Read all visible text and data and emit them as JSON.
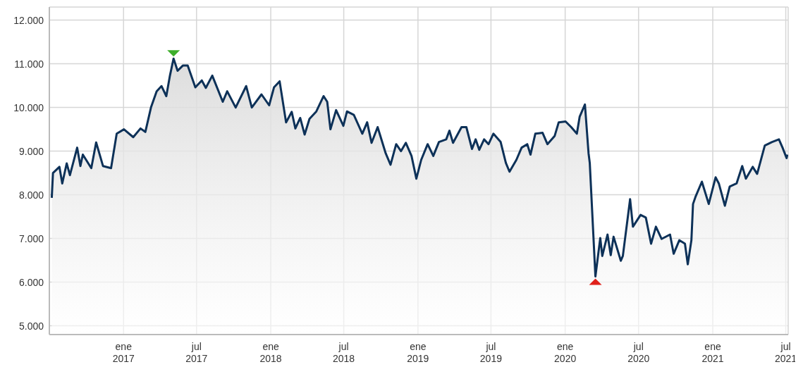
{
  "chart_data": {
    "type": "area",
    "x": [
      "2016-07-07",
      "2016-07-10",
      "2016-07-26",
      "2016-08-02",
      "2016-08-13",
      "2016-08-21",
      "2016-09-08",
      "2016-09-16",
      "2016-09-22",
      "2016-10-13",
      "2016-10-25",
      "2016-11-11",
      "2016-12-01",
      "2016-12-15",
      "2017-01-02",
      "2017-01-25",
      "2017-02-12",
      "2017-02-24",
      "2017-03-10",
      "2017-03-24",
      "2017-04-05",
      "2017-04-17",
      "2017-04-26",
      "2017-05-05",
      "2017-05-15",
      "2017-05-28",
      "2017-06-09",
      "2017-06-28",
      "2017-07-14",
      "2017-07-24",
      "2017-08-09",
      "2017-09-04",
      "2017-09-15",
      "2017-10-06",
      "2017-11-01",
      "2017-11-15",
      "2017-12-09",
      "2017-12-28",
      "2018-01-09",
      "2018-01-23",
      "2018-02-08",
      "2018-02-22",
      "2018-03-03",
      "2018-03-15",
      "2018-03-26",
      "2018-04-07",
      "2018-04-24",
      "2018-05-12",
      "2018-05-21",
      "2018-05-29",
      "2018-06-12",
      "2018-06-30",
      "2018-07-09",
      "2018-07-26",
      "2018-08-16",
      "2018-08-28",
      "2018-09-08",
      "2018-09-23",
      "2018-10-13",
      "2018-10-25",
      "2018-11-08",
      "2018-11-20",
      "2018-12-02",
      "2018-12-16",
      "2018-12-28",
      "2019-01-09",
      "2019-01-25",
      "2019-02-08",
      "2019-02-22",
      "2019-03-12",
      "2019-03-20",
      "2019-03-29",
      "2019-04-19",
      "2019-05-01",
      "2019-05-15",
      "2019-05-24",
      "2019-06-02",
      "2019-06-14",
      "2019-06-25",
      "2019-07-07",
      "2019-07-25",
      "2019-08-07",
      "2019-08-16",
      "2019-09-02",
      "2019-09-15",
      "2019-09-29",
      "2019-10-07",
      "2019-10-19",
      "2019-11-06",
      "2019-11-18",
      "2019-12-06",
      "2019-12-16",
      "2020-01-02",
      "2020-01-16",
      "2020-01-30",
      "2020-02-06",
      "2020-02-19",
      "2020-02-28",
      "2020-03-02",
      "2020-03-16",
      "2020-03-28",
      "2020-04-02",
      "2020-04-15",
      "2020-04-23",
      "2020-04-30",
      "2020-05-18",
      "2020-05-23",
      "2020-06-10",
      "2020-06-17",
      "2020-07-06",
      "2020-07-19",
      "2020-08-01",
      "2020-08-13",
      "2020-08-27",
      "2020-09-17",
      "2020-09-26",
      "2020-10-10",
      "2020-10-24",
      "2020-10-31",
      "2020-11-09",
      "2020-11-13",
      "2020-11-19",
      "2020-12-05",
      "2020-12-22",
      "2021-01-08",
      "2021-01-16",
      "2021-01-31",
      "2021-02-12",
      "2021-03-01",
      "2021-03-15",
      "2021-03-24",
      "2021-04-10",
      "2021-04-21",
      "2021-05-10",
      "2021-05-28",
      "2021-06-14",
      "2021-06-23",
      "2021-07-03",
      "2021-07-05"
    ],
    "series": [
      {
        "color": "#0d3158",
        "values": [
          7930,
          8500,
          8640,
          8260,
          8720,
          8450,
          9080,
          8660,
          8920,
          8610,
          9200,
          8660,
          8610,
          9400,
          9500,
          9320,
          9520,
          9440,
          10000,
          10370,
          10490,
          10260,
          10730,
          11120,
          10840,
          10960,
          10960,
          10460,
          10620,
          10450,
          10730,
          10130,
          10370,
          10000,
          10490,
          10000,
          10300,
          10050,
          10460,
          10600,
          9660,
          9900,
          9520,
          9760,
          9380,
          9740,
          9910,
          10260,
          10130,
          9500,
          9940,
          9580,
          9910,
          9830,
          9400,
          9660,
          9190,
          9550,
          8950,
          8690,
          9160,
          9000,
          9190,
          8890,
          8370,
          8800,
          9160,
          8890,
          9210,
          9270,
          9470,
          9190,
          9550,
          9550,
          9050,
          9270,
          9030,
          9270,
          9160,
          9400,
          9210,
          8730,
          8530,
          8800,
          9080,
          9160,
          8920,
          9400,
          9420,
          9160,
          9350,
          9660,
          9680,
          9550,
          9400,
          9790,
          10070,
          8950,
          8730,
          6130,
          7010,
          6600,
          7090,
          6620,
          7040,
          6490,
          6600,
          7900,
          7270,
          7540,
          7480,
          6880,
          7270,
          6990,
          7090,
          6650,
          6960,
          6880,
          6410,
          6960,
          7790,
          7950,
          8300,
          7790,
          8400,
          8260,
          7750,
          8190,
          8260,
          8660,
          8370,
          8640,
          8480,
          9130,
          9210,
          9270,
          9080,
          8840,
          8920
        ]
      }
    ],
    "xlim": [
      "2016-07-01",
      "2021-07-07"
    ],
    "xticks": [
      {
        "value": "2017-01-01",
        "label": "ene 2017"
      },
      {
        "value": "2017-07-01",
        "label": "jul 2017"
      },
      {
        "value": "2018-01-01",
        "label": "ene 2018"
      },
      {
        "value": "2018-07-01",
        "label": "jul 2018"
      },
      {
        "value": "2019-01-01",
        "label": "ene 2019"
      },
      {
        "value": "2019-07-01",
        "label": "jul 2019"
      },
      {
        "value": "2020-01-01",
        "label": "ene 2020"
      },
      {
        "value": "2020-07-01",
        "label": "jul 2020"
      },
      {
        "value": "2021-01-01",
        "label": "ene 2021"
      },
      {
        "value": "2021-07-01",
        "label": "jul 2021"
      }
    ],
    "ylim": [
      4800,
      12300
    ],
    "yticks": [
      {
        "value": 5000,
        "label": "5.000"
      },
      {
        "value": 6000,
        "label": "6.000"
      },
      {
        "value": 7000,
        "label": "7.000"
      },
      {
        "value": 8000,
        "label": "8.000"
      },
      {
        "value": 9000,
        "label": "9.000"
      },
      {
        "value": 10000,
        "label": "10.000"
      },
      {
        "value": 11000,
        "label": "11.000"
      },
      {
        "value": 12000,
        "label": "12.000"
      }
    ],
    "grid": true
  }
}
